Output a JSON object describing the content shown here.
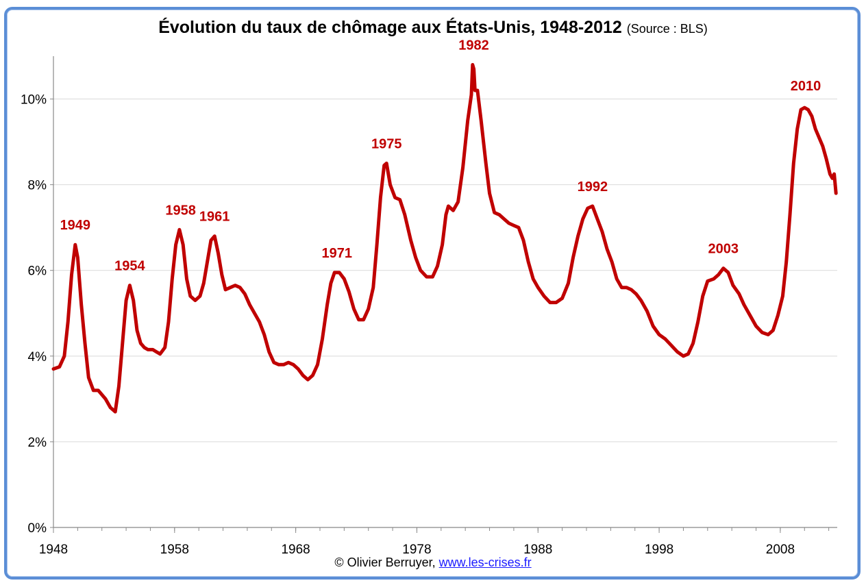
{
  "chart_data": {
    "type": "line",
    "title": "Évolution du taux de chômage aux États-Unis, 1948-2012",
    "subtitle": "(Source : BLS)",
    "xlabel": "",
    "ylabel": "",
    "xlim": [
      1948,
      2012.7
    ],
    "ylim": [
      0,
      11
    ],
    "x_ticks": [
      "1948",
      "1958",
      "1968",
      "1978",
      "1988",
      "1998",
      "2008"
    ],
    "y_ticks": [
      "0%",
      "2%",
      "4%",
      "6%",
      "8%",
      "10%"
    ],
    "grid": "horizontal",
    "line_color": "#c00000",
    "series": [
      {
        "name": "",
        "points": [
          [
            1948.0,
            3.7
          ],
          [
            1948.5,
            3.75
          ],
          [
            1948.9,
            4.0
          ],
          [
            1949.2,
            4.8
          ],
          [
            1949.5,
            5.9
          ],
          [
            1949.8,
            6.6
          ],
          [
            1950.0,
            6.3
          ],
          [
            1950.3,
            5.2
          ],
          [
            1950.6,
            4.3
          ],
          [
            1950.9,
            3.5
          ],
          [
            1951.3,
            3.2
          ],
          [
            1951.7,
            3.2
          ],
          [
            1952.0,
            3.1
          ],
          [
            1952.3,
            3.0
          ],
          [
            1952.7,
            2.8
          ],
          [
            1953.1,
            2.7
          ],
          [
            1953.4,
            3.3
          ],
          [
            1953.7,
            4.3
          ],
          [
            1954.0,
            5.3
          ],
          [
            1954.3,
            5.65
          ],
          [
            1954.6,
            5.3
          ],
          [
            1954.9,
            4.6
          ],
          [
            1955.2,
            4.3
          ],
          [
            1955.5,
            4.2
          ],
          [
            1955.8,
            4.15
          ],
          [
            1956.2,
            4.15
          ],
          [
            1956.5,
            4.1
          ],
          [
            1956.8,
            4.05
          ],
          [
            1957.2,
            4.2
          ],
          [
            1957.5,
            4.8
          ],
          [
            1957.8,
            5.8
          ],
          [
            1958.1,
            6.6
          ],
          [
            1958.4,
            6.95
          ],
          [
            1958.7,
            6.6
          ],
          [
            1959.0,
            5.8
          ],
          [
            1959.3,
            5.4
          ],
          [
            1959.7,
            5.3
          ],
          [
            1960.1,
            5.4
          ],
          [
            1960.4,
            5.7
          ],
          [
            1960.7,
            6.2
          ],
          [
            1961.0,
            6.7
          ],
          [
            1961.3,
            6.8
          ],
          [
            1961.6,
            6.4
          ],
          [
            1961.9,
            5.9
          ],
          [
            1962.2,
            5.55
          ],
          [
            1962.6,
            5.6
          ],
          [
            1963.0,
            5.65
          ],
          [
            1963.4,
            5.6
          ],
          [
            1963.8,
            5.45
          ],
          [
            1964.2,
            5.2
          ],
          [
            1964.6,
            5.0
          ],
          [
            1965.0,
            4.8
          ],
          [
            1965.4,
            4.5
          ],
          [
            1965.8,
            4.1
          ],
          [
            1966.2,
            3.85
          ],
          [
            1966.6,
            3.8
          ],
          [
            1967.0,
            3.8
          ],
          [
            1967.4,
            3.85
          ],
          [
            1967.8,
            3.8
          ],
          [
            1968.2,
            3.7
          ],
          [
            1968.6,
            3.55
          ],
          [
            1969.0,
            3.45
          ],
          [
            1969.4,
            3.55
          ],
          [
            1969.8,
            3.8
          ],
          [
            1970.2,
            4.4
          ],
          [
            1970.6,
            5.2
          ],
          [
            1970.9,
            5.7
          ],
          [
            1971.2,
            5.95
          ],
          [
            1971.6,
            5.95
          ],
          [
            1972.0,
            5.8
          ],
          [
            1972.4,
            5.5
          ],
          [
            1972.8,
            5.1
          ],
          [
            1973.2,
            4.85
          ],
          [
            1973.6,
            4.85
          ],
          [
            1974.0,
            5.1
          ],
          [
            1974.4,
            5.6
          ],
          [
            1974.7,
            6.6
          ],
          [
            1975.0,
            7.7
          ],
          [
            1975.3,
            8.45
          ],
          [
            1975.5,
            8.5
          ],
          [
            1975.8,
            8.0
          ],
          [
            1976.2,
            7.7
          ],
          [
            1976.6,
            7.65
          ],
          [
            1977.0,
            7.3
          ],
          [
            1977.5,
            6.7
          ],
          [
            1977.9,
            6.3
          ],
          [
            1978.3,
            6.0
          ],
          [
            1978.8,
            5.85
          ],
          [
            1979.3,
            5.85
          ],
          [
            1979.7,
            6.1
          ],
          [
            1980.1,
            6.6
          ],
          [
            1980.4,
            7.3
          ],
          [
            1980.6,
            7.5
          ],
          [
            1981.0,
            7.4
          ],
          [
            1981.4,
            7.6
          ],
          [
            1981.8,
            8.4
          ],
          [
            1982.2,
            9.5
          ],
          [
            1982.5,
            10.1
          ],
          [
            1982.6,
            10.8
          ],
          [
            1982.7,
            10.7
          ],
          [
            1982.8,
            10.2
          ],
          [
            1983.0,
            10.2
          ],
          [
            1983.3,
            9.5
          ],
          [
            1983.7,
            8.5
          ],
          [
            1984.0,
            7.8
          ],
          [
            1984.4,
            7.35
          ],
          [
            1984.8,
            7.3
          ],
          [
            1985.2,
            7.2
          ],
          [
            1985.6,
            7.1
          ],
          [
            1986.0,
            7.05
          ],
          [
            1986.4,
            7.0
          ],
          [
            1986.8,
            6.7
          ],
          [
            1987.2,
            6.2
          ],
          [
            1987.6,
            5.8
          ],
          [
            1988.0,
            5.6
          ],
          [
            1988.5,
            5.4
          ],
          [
            1989.0,
            5.25
          ],
          [
            1989.5,
            5.25
          ],
          [
            1990.0,
            5.35
          ],
          [
            1990.5,
            5.7
          ],
          [
            1990.9,
            6.3
          ],
          [
            1991.3,
            6.8
          ],
          [
            1991.7,
            7.2
          ],
          [
            1992.1,
            7.45
          ],
          [
            1992.5,
            7.5
          ],
          [
            1992.9,
            7.2
          ],
          [
            1993.3,
            6.9
          ],
          [
            1993.7,
            6.5
          ],
          [
            1994.1,
            6.2
          ],
          [
            1994.5,
            5.8
          ],
          [
            1994.9,
            5.6
          ],
          [
            1995.3,
            5.6
          ],
          [
            1995.7,
            5.55
          ],
          [
            1996.1,
            5.45
          ],
          [
            1996.5,
            5.3
          ],
          [
            1997.0,
            5.05
          ],
          [
            1997.5,
            4.7
          ],
          [
            1998.0,
            4.5
          ],
          [
            1998.5,
            4.4
          ],
          [
            1999.0,
            4.25
          ],
          [
            1999.5,
            4.1
          ],
          [
            2000.0,
            4.0
          ],
          [
            2000.4,
            4.05
          ],
          [
            2000.8,
            4.3
          ],
          [
            2001.2,
            4.8
          ],
          [
            2001.6,
            5.4
          ],
          [
            2002.0,
            5.75
          ],
          [
            2002.5,
            5.8
          ],
          [
            2002.9,
            5.9
          ],
          [
            2003.3,
            6.05
          ],
          [
            2003.7,
            5.95
          ],
          [
            2004.1,
            5.65
          ],
          [
            2004.6,
            5.45
          ],
          [
            2005.0,
            5.2
          ],
          [
            2005.5,
            4.95
          ],
          [
            2006.0,
            4.7
          ],
          [
            2006.5,
            4.55
          ],
          [
            2007.0,
            4.5
          ],
          [
            2007.4,
            4.6
          ],
          [
            2007.8,
            4.95
          ],
          [
            2008.2,
            5.4
          ],
          [
            2008.5,
            6.2
          ],
          [
            2008.8,
            7.3
          ],
          [
            2009.1,
            8.5
          ],
          [
            2009.4,
            9.3
          ],
          [
            2009.7,
            9.75
          ],
          [
            2010.0,
            9.8
          ],
          [
            2010.3,
            9.75
          ],
          [
            2010.6,
            9.6
          ],
          [
            2010.9,
            9.3
          ],
          [
            2011.2,
            9.1
          ],
          [
            2011.5,
            8.9
          ],
          [
            2011.8,
            8.6
          ],
          [
            2012.1,
            8.25
          ],
          [
            2012.3,
            8.15
          ],
          [
            2012.45,
            8.25
          ],
          [
            2012.6,
            7.8
          ]
        ]
      }
    ],
    "annotations": [
      {
        "text": "1949",
        "x": 1949.8,
        "y": 6.6
      },
      {
        "text": "1954",
        "x": 1954.3,
        "y": 5.65
      },
      {
        "text": "1958",
        "x": 1958.5,
        "y": 6.95
      },
      {
        "text": "1961",
        "x": 1961.3,
        "y": 6.8
      },
      {
        "text": "1971",
        "x": 1971.4,
        "y": 5.95
      },
      {
        "text": "1975",
        "x": 1975.5,
        "y": 8.5
      },
      {
        "text": "1982",
        "x": 1982.7,
        "y": 10.8
      },
      {
        "text": "1992",
        "x": 1992.5,
        "y": 7.5
      },
      {
        "text": "2003",
        "x": 2003.3,
        "y": 6.05
      },
      {
        "text": "2010",
        "x": 2010.1,
        "y": 9.85
      }
    ]
  },
  "footer": {
    "credit": "© Olivier Berruyer,",
    "link": "www.les-crises.fr"
  }
}
